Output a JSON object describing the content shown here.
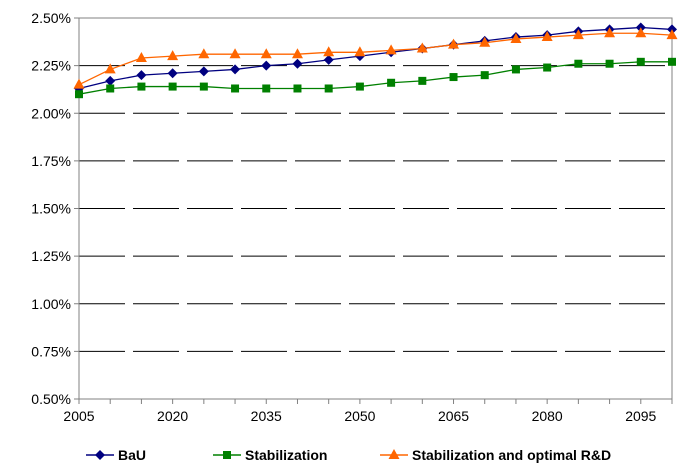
{
  "chart_data": {
    "type": "line",
    "x": [
      2005,
      2010,
      2015,
      2020,
      2025,
      2030,
      2035,
      2040,
      2045,
      2050,
      2055,
      2060,
      2065,
      2070,
      2075,
      2080,
      2085,
      2090,
      2095,
      2100
    ],
    "x_tick_labels": [
      "2005",
      "2020",
      "2035",
      "2050",
      "2065",
      "2080",
      "2095"
    ],
    "x_tick_values": [
      2005,
      2020,
      2035,
      2050,
      2065,
      2080,
      2095
    ],
    "xlim": [
      2005,
      2100
    ],
    "ylim": [
      0.005,
      0.025
    ],
    "y_tick_values": [
      0.005,
      0.0075,
      0.01,
      0.0125,
      0.015,
      0.0175,
      0.02,
      0.0225,
      0.025
    ],
    "y_tick_labels": [
      "0.50%",
      "0.75%",
      "1.00%",
      "1.25%",
      "1.50%",
      "1.75%",
      "2.00%",
      "2.25%",
      "2.50%"
    ],
    "title": "",
    "xlabel": "",
    "ylabel": "",
    "grid": "horizontal",
    "legend_position": "bottom",
    "series": [
      {
        "name": "BaU",
        "color": "#000080",
        "marker": "diamond",
        "values": [
          0.0213,
          0.0217,
          0.022,
          0.0221,
          0.0222,
          0.0223,
          0.0225,
          0.0226,
          0.0228,
          0.023,
          0.0232,
          0.0234,
          0.0236,
          0.0238,
          0.024,
          0.0241,
          0.0243,
          0.0244,
          0.0245,
          0.0244
        ]
      },
      {
        "name": "Stabilization",
        "color": "#008000",
        "marker": "square",
        "values": [
          0.021,
          0.0213,
          0.0214,
          0.0214,
          0.0214,
          0.0213,
          0.0213,
          0.0213,
          0.0213,
          0.0214,
          0.0216,
          0.0217,
          0.0219,
          0.022,
          0.0223,
          0.0224,
          0.0226,
          0.0226,
          0.0227,
          0.0227
        ]
      },
      {
        "name": "Stabilization and optimal R&D",
        "color": "#FF6600",
        "marker": "triangle",
        "values": [
          0.0215,
          0.0223,
          0.0229,
          0.023,
          0.0231,
          0.0231,
          0.0231,
          0.0231,
          0.0232,
          0.0232,
          0.0233,
          0.0234,
          0.0236,
          0.0237,
          0.0239,
          0.024,
          0.0241,
          0.0242,
          0.0242,
          0.0241
        ]
      }
    ]
  }
}
